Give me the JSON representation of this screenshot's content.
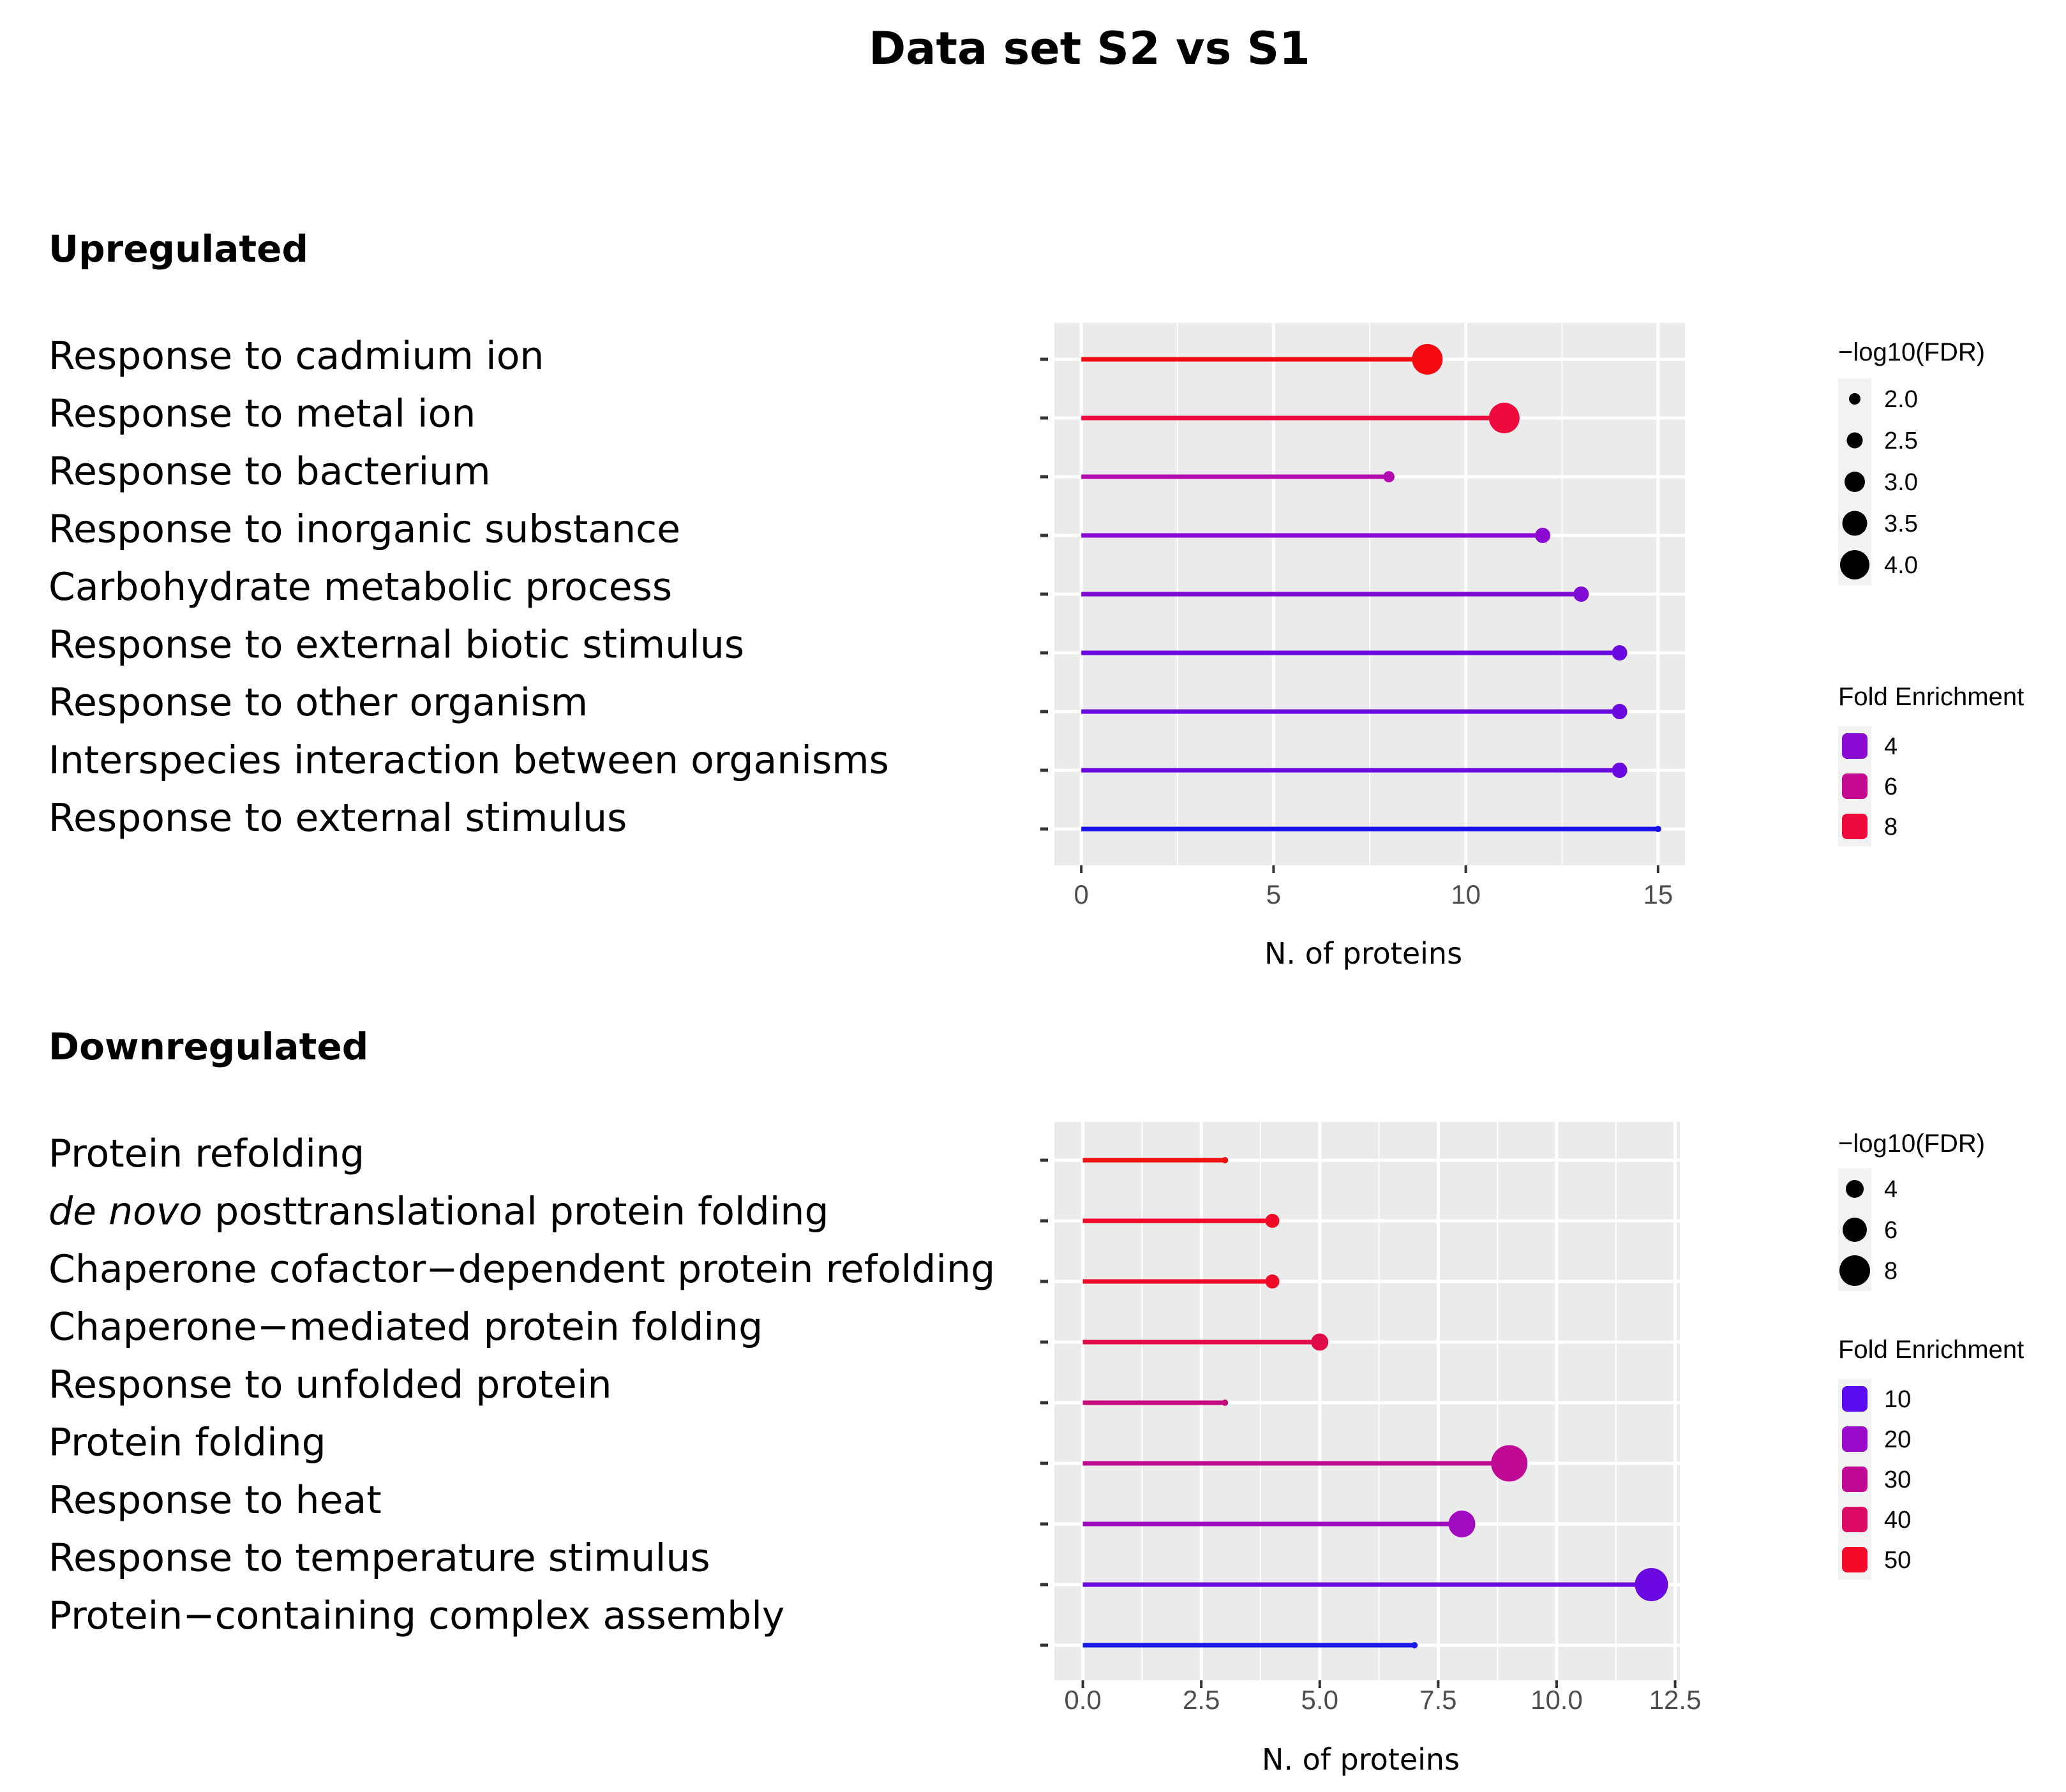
{
  "title": "Data set S2 vs S1",
  "chart_data": [
    {
      "type": "lollipop",
      "section_label": "Upregulated",
      "xlabel": "N. of proteins",
      "xlim": [
        -0.7,
        15.7
      ],
      "xticks": [
        0,
        5,
        10,
        15
      ],
      "xtick_labels": [
        "0",
        "5",
        "10",
        "15"
      ],
      "terms": [
        {
          "label": "Response to cadmium ion",
          "value": 9,
          "fdr": 4.0,
          "fold": 8.5,
          "color": "#f50a10"
        },
        {
          "label": "Response to metal ion",
          "value": 11,
          "fdr": 4.0,
          "fold": 8.0,
          "color": "#ef0a3e"
        },
        {
          "label": "Response to bacterium",
          "value": 8,
          "fdr": 2.1,
          "fold": 5.0,
          "color": "#b20ab0"
        },
        {
          "label": "Response to inorganic substance",
          "value": 12,
          "fdr": 2.5,
          "fold": 3.8,
          "color": "#8a0ad2"
        },
        {
          "label": "Carbohydrate metabolic process",
          "value": 13,
          "fdr": 2.5,
          "fold": 3.6,
          "color": "#7e0ad4"
        },
        {
          "label": "Response to external biotic stimulus",
          "value": 14,
          "fdr": 2.5,
          "fold": 3.2,
          "color": "#6a0ae0"
        },
        {
          "label": "Response to other organism",
          "value": 14,
          "fdr": 2.5,
          "fold": 3.2,
          "color": "#6a0ae0"
        },
        {
          "label": "Interspecies interaction between organisms",
          "value": 14,
          "fdr": 2.5,
          "fold": 3.2,
          "color": "#6a0ae0"
        },
        {
          "label": "Response to external stimulus",
          "value": 15,
          "fdr": 1.5,
          "fold": 2.5,
          "color": "#1a10ee"
        }
      ],
      "legend_fdr": {
        "title": "−log10(FDR)",
        "values": [
          "2.0",
          "2.5",
          "3.0",
          "3.5",
          "4.0"
        ]
      },
      "legend_fold": {
        "title": "Fold Enrichment",
        "values": [
          "4",
          "6",
          "8"
        ],
        "colors": [
          "#8a0ad2",
          "#c40a8e",
          "#ef0a3e"
        ]
      }
    },
    {
      "type": "lollipop",
      "section_label": "Downregulated",
      "xlabel": "N. of proteins",
      "xlim": [
        -0.6,
        12.6
      ],
      "xticks": [
        0,
        2.5,
        5,
        7.5,
        10,
        12.5
      ],
      "xtick_labels": [
        "0.0",
        "2.5",
        "5.0",
        "7.5",
        "10.0",
        "12.5"
      ],
      "terms": [
        {
          "label_pre": "",
          "label_italic": "",
          "label": "Protein refolding",
          "value": 3,
          "fdr": 3.5,
          "fold": 52,
          "color": "#f01010"
        },
        {
          "label_pre": "",
          "label_italic": "de novo",
          "label": " posttranslational protein folding",
          "value": 4,
          "fdr": 5,
          "fold": 48,
          "color": "#f00a28"
        },
        {
          "label_pre": "",
          "label_italic": "",
          "label": "Chaperone cofactor−dependent protein refolding",
          "value": 4,
          "fdr": 5,
          "fold": 48,
          "color": "#f00a28"
        },
        {
          "label_pre": "",
          "label_italic": "",
          "label": "Chaperone−mediated protein folding",
          "value": 5,
          "fdr": 5.5,
          "fold": 42,
          "color": "#e00a48"
        },
        {
          "label_pre": "",
          "label_italic": "",
          "label": "Response to unfolded protein",
          "value": 3,
          "fdr": 2.5,
          "fold": 35,
          "color": "#c40a7a"
        },
        {
          "label_pre": "",
          "label_italic": "",
          "label": "Protein folding",
          "value": 9,
          "fdr": 8.5,
          "fold": 30,
          "color": "#c00a96"
        },
        {
          "label_pre": "",
          "label_italic": "",
          "label": "Response to heat",
          "value": 8,
          "fdr": 7,
          "fold": 22,
          "color": "#a00ac0"
        },
        {
          "label_pre": "",
          "label_italic": "",
          "label": "Response to temperature stimulus",
          "value": 12,
          "fdr": 8,
          "fold": 14,
          "color": "#6a0ae0"
        },
        {
          "label_pre": "",
          "label_italic": "",
          "label": "Protein−containing complex assembly",
          "value": 7,
          "fdr": 2.5,
          "fold": 6,
          "color": "#1a18e8"
        }
      ],
      "legend_fdr": {
        "title": "−log10(FDR)",
        "values": [
          "4",
          "6",
          "8"
        ]
      },
      "legend_fold": {
        "title": "Fold Enrichment",
        "values": [
          "10",
          "20",
          "30",
          "40",
          "50"
        ],
        "colors": [
          "#5a0af0",
          "#9a0ac8",
          "#c00a96",
          "#dc0a62",
          "#f50a2a"
        ]
      }
    }
  ]
}
